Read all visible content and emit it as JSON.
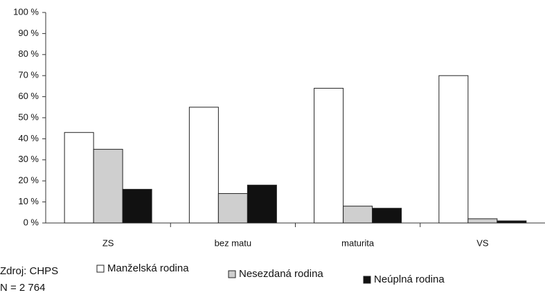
{
  "chart_data": {
    "type": "bar",
    "categories": [
      "ZS",
      "bez matu",
      "maturita",
      "VS"
    ],
    "series": [
      {
        "name": "Manželská rodina",
        "color": "#ffffff",
        "values": [
          43,
          55,
          64,
          70
        ]
      },
      {
        "name": "Nesezdaná rodina",
        "color": "#cfcfcf",
        "values": [
          35,
          14,
          8,
          2
        ]
      },
      {
        "name": "Neúplná rodina",
        "color": "#111111",
        "values": [
          16,
          18,
          7,
          1
        ]
      }
    ],
    "ylim": [
      0,
      100
    ],
    "yticks": [
      {
        "value": 0,
        "label": "0 %"
      },
      {
        "value": 10,
        "label": "10 %"
      },
      {
        "value": 20,
        "label": "20 %"
      },
      {
        "value": 30,
        "label": "30 %"
      },
      {
        "value": 40,
        "label": "40 %"
      },
      {
        "value": 50,
        "label": "50 %"
      },
      {
        "value": 60,
        "label": "60 %"
      },
      {
        "value": 70,
        "label": "70 %"
      },
      {
        "value": 80,
        "label": "80 %"
      },
      {
        "value": 90,
        "label": "90 %"
      },
      {
        "value": 100,
        "label": "100 %"
      }
    ],
    "grid": false,
    "legend": "bottom",
    "source": "Zdroj: CHPS",
    "note": "N = 2 764"
  }
}
